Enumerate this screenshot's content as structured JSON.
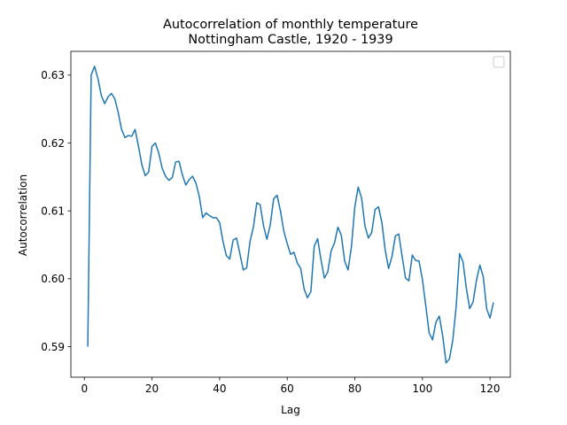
{
  "chart_data": {
    "type": "line",
    "title": "Autocorrelation of monthly temperature",
    "subtitle": "Nottingham Castle, 1920 - 1939",
    "xlabel": "Lag",
    "ylabel": "Autocorrelation",
    "xlim": [
      -4,
      126
    ],
    "ylim": [
      0.5855,
      0.6335
    ],
    "xticks": [
      0,
      20,
      40,
      60,
      80,
      100,
      120
    ],
    "xtick_labels": [
      "0",
      "20",
      "40",
      "60",
      "80",
      "100",
      "120"
    ],
    "yticks": [
      0.59,
      0.6,
      0.61,
      0.62,
      0.63
    ],
    "ytick_labels": [
      "0.59",
      "0.60",
      "0.61",
      "0.62",
      "0.63"
    ],
    "grid": false,
    "legend": {
      "position": "top-right",
      "entries": []
    },
    "series": [
      {
        "color": "#1f77b4",
        "x": [
          1,
          2,
          3,
          4,
          5,
          6,
          7,
          8,
          9,
          10,
          11,
          12,
          13,
          14,
          15,
          16,
          17,
          18,
          19,
          20,
          21,
          22,
          23,
          24,
          25,
          26,
          27,
          28,
          29,
          30,
          31,
          32,
          33,
          34,
          35,
          36,
          37,
          38,
          39,
          40,
          41,
          42,
          43,
          44,
          45,
          46,
          47,
          48,
          49,
          50,
          51,
          52,
          53,
          54,
          55,
          56,
          57,
          58,
          59,
          60,
          61,
          62,
          63,
          64,
          65,
          66,
          67,
          68,
          69,
          70,
          71,
          72,
          73,
          74,
          75,
          76,
          77,
          78,
          79,
          80,
          81,
          82,
          83,
          84,
          85,
          86,
          87,
          88,
          89,
          90,
          91,
          92,
          93,
          94,
          95,
          96,
          97,
          98,
          99,
          100,
          101,
          102,
          103,
          104,
          105,
          106,
          107,
          108,
          109,
          110,
          111,
          112,
          113,
          114,
          115,
          116,
          117,
          118,
          119,
          120,
          121
        ],
        "y": [
          0.59,
          0.63,
          0.6313,
          0.6295,
          0.627,
          0.6258,
          0.6268,
          0.6273,
          0.6265,
          0.6245,
          0.622,
          0.6208,
          0.6211,
          0.621,
          0.622,
          0.6195,
          0.6168,
          0.6152,
          0.6157,
          0.6195,
          0.62,
          0.6185,
          0.6163,
          0.6151,
          0.6145,
          0.6149,
          0.6172,
          0.6173,
          0.6153,
          0.6138,
          0.6146,
          0.6151,
          0.6141,
          0.6121,
          0.609,
          0.6097,
          0.6093,
          0.609,
          0.609,
          0.6083,
          0.6055,
          0.6034,
          0.6029,
          0.6057,
          0.606,
          0.6037,
          0.6013,
          0.6016,
          0.6055,
          0.6076,
          0.6112,
          0.6109,
          0.6078,
          0.6058,
          0.608,
          0.6118,
          0.6123,
          0.61,
          0.607,
          0.6052,
          0.6036,
          0.6039,
          0.6023,
          0.6015,
          0.5985,
          0.5972,
          0.5981,
          0.6048,
          0.6059,
          0.6028,
          0.6001,
          0.601,
          0.6041,
          0.6053,
          0.6076,
          0.6064,
          0.6026,
          0.6013,
          0.6047,
          0.6106,
          0.6135,
          0.6119,
          0.6078,
          0.606,
          0.6068,
          0.6102,
          0.6106,
          0.6083,
          0.6042,
          0.6015,
          0.6033,
          0.6063,
          0.6066,
          0.6033,
          0.6001,
          0.5997,
          0.6035,
          0.6027,
          0.6026,
          0.5999,
          0.596,
          0.592,
          0.591,
          0.5936,
          0.5945,
          0.5916,
          0.5876,
          0.5882,
          0.591,
          0.596,
          0.6037,
          0.6025,
          0.5986,
          0.5956,
          0.5966,
          0.5998,
          0.602,
          0.6003,
          0.5956,
          0.5942,
          0.5965
        ]
      }
    ]
  }
}
